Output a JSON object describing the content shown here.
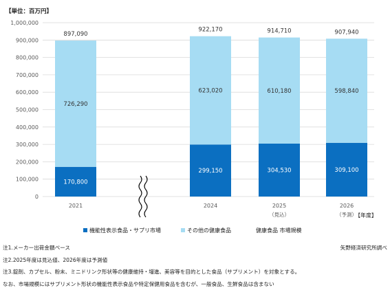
{
  "chart_data": {
    "type": "bar",
    "stacked": true,
    "unit_label": "【単位：百万円】",
    "x_unit_label": "【年度】",
    "categories": [
      "2021",
      "2024",
      "2025",
      "2026"
    ],
    "category_sublabels": [
      "",
      "",
      "（見込）",
      "（予測）"
    ],
    "axis_break_between": [
      "2021",
      "2024"
    ],
    "series": [
      {
        "name": "機能性表示食品・サプリ市場",
        "values": [
          170800,
          299150,
          304530,
          309100
        ],
        "color": "#0b6fc1"
      },
      {
        "name": "その他の健康食品",
        "values": [
          726290,
          623020,
          610180,
          598840
        ],
        "color": "#a6dcf3"
      }
    ],
    "totals": [
      897090,
      922170,
      914710,
      907940
    ],
    "total_legend_label": "健康食品 市場規模",
    "data_labels": {
      "bottom": [
        "170,800",
        "299,150",
        "304,530",
        "309,100"
      ],
      "top": [
        "726,290",
        "623,020",
        "610,180",
        "598,840"
      ],
      "total": [
        "897,090",
        "922,170",
        "914,710",
        "907,940"
      ]
    },
    "ylim": [
      0,
      1000000
    ],
    "yticks": [
      0,
      100000,
      200000,
      300000,
      400000,
      500000,
      600000,
      700000,
      800000,
      900000,
      1000000
    ],
    "ytick_labels": [
      "0",
      "100,000",
      "200,000",
      "300,000",
      "400,000",
      "500,000",
      "600,000",
      "700,000",
      "800,000",
      "900,000",
      "1,000,000"
    ],
    "grid": true,
    "legend_position": "bottom"
  },
  "notes": [
    "注1.メーカー出荷金額ベース",
    "注2.2025年度は見込値、2026年度は予測値",
    "注3.錠剤、カプセル、粉末、ミニドリンク形状等の健康維持・増進、美容等を目的とした食品（サプリメント）を対象とする。",
    "なお、市場規模にはサプリメント形状の機能性表示食品や特定保健用食品を含むが、一般食品、生鮮食品は含まない"
  ],
  "source": "矢野経済研究所調べ",
  "colors": {
    "grid": "#d9d9d9",
    "axis_text": "#595959",
    "break_mark": "#000000"
  }
}
